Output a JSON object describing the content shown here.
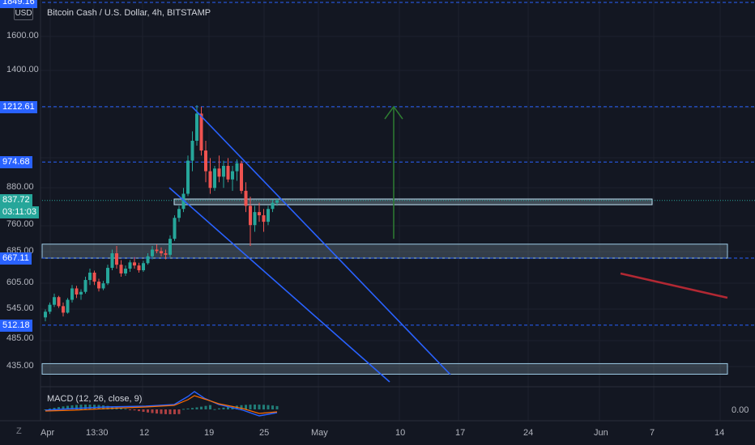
{
  "chart_title": "Bitcoin Cash / U.S. Dollar, 4h, BITSTAMP",
  "currency_button": "USD",
  "timezone_button": "Z",
  "price_axis": {
    "labels": [
      "1600.00",
      "1400.00",
      "880.00",
      "760.00",
      "685.00",
      "605.00",
      "545.00",
      "485.00",
      "435.00"
    ],
    "top_tag": "1849.16",
    "tags": [
      "1212.61",
      "974.68",
      "667.11",
      "512.18"
    ],
    "current_price": "837.72",
    "countdown": "03:11:03"
  },
  "time_axis": [
    "Apr",
    "13:30",
    "12",
    "19",
    "25",
    "May",
    "10",
    "17",
    "24",
    "Jun",
    "7",
    "14"
  ],
  "macd": {
    "title": "MACD (12, 26, close, 9)",
    "zero_label": "0.00"
  },
  "colors": {
    "background": "#131722",
    "up": "#26a69a",
    "down": "#ef5350",
    "channel": "#2962ff",
    "target_arrow": "#2e7d32",
    "trend_red": "#b22833",
    "tag_bg": "#2962ff"
  },
  "chart_data": {
    "type": "candlestick",
    "title": "Bitcoin Cash / U.S. Dollar, 4h, BITSTAMP",
    "y_scale": "log",
    "horizontal_levels": [
      1849.16,
      1212.61,
      974.68,
      837.72,
      667.11,
      512.18
    ],
    "zones": [
      {
        "from": 667.11,
        "to": 705
      },
      {
        "from": 422,
        "to": 440
      }
    ],
    "current_price": 837.72,
    "ohlc": [
      [
        528,
        545,
        520,
        540
      ],
      [
        540,
        560,
        535,
        555
      ],
      [
        555,
        580,
        550,
        572
      ],
      [
        572,
        575,
        548,
        552
      ],
      [
        552,
        560,
        530,
        538
      ],
      [
        538,
        570,
        536,
        566
      ],
      [
        566,
        600,
        560,
        592
      ],
      [
        592,
        598,
        570,
        578
      ],
      [
        578,
        590,
        566,
        584
      ],
      [
        584,
        620,
        580,
        612
      ],
      [
        612,
        640,
        600,
        630
      ],
      [
        630,
        635,
        600,
        608
      ],
      [
        608,
        615,
        585,
        592
      ],
      [
        592,
        610,
        588,
        604
      ],
      [
        604,
        650,
        600,
        642
      ],
      [
        642,
        690,
        636,
        680
      ],
      [
        680,
        700,
        640,
        650
      ],
      [
        650,
        662,
        620,
        628
      ],
      [
        628,
        648,
        622,
        640
      ],
      [
        640,
        662,
        632,
        656
      ],
      [
        656,
        670,
        640,
        648
      ],
      [
        648,
        655,
        630,
        636
      ],
      [
        636,
        660,
        632,
        654
      ],
      [
        654,
        680,
        650,
        672
      ],
      [
        672,
        700,
        664,
        690
      ],
      [
        690,
        704,
        680,
        686
      ],
      [
        686,
        696,
        672,
        680
      ],
      [
        680,
        690,
        664,
        676
      ],
      [
        676,
        730,
        670,
        720
      ],
      [
        720,
        790,
        714,
        782
      ],
      [
        782,
        820,
        770,
        810
      ],
      [
        810,
        880,
        800,
        860
      ],
      [
        860,
        1000,
        852,
        980
      ],
      [
        980,
        1100,
        940,
        1060
      ],
      [
        1060,
        1220,
        1040,
        1180
      ],
      [
        1180,
        1212,
        1000,
        1020
      ],
      [
        1020,
        1060,
        900,
        940
      ],
      [
        940,
        990,
        860,
        880
      ],
      [
        880,
        960,
        870,
        950
      ],
      [
        950,
        1000,
        900,
        920
      ],
      [
        920,
        980,
        880,
        960
      ],
      [
        960,
        990,
        900,
        910
      ],
      [
        910,
        960,
        870,
        940
      ],
      [
        940,
        985,
        905,
        970
      ],
      [
        970,
        980,
        860,
        870
      ],
      [
        870,
        900,
        800,
        820
      ],
      [
        820,
        850,
        700,
        760
      ],
      [
        760,
        820,
        740,
        800
      ],
      [
        800,
        830,
        770,
        790
      ],
      [
        790,
        810,
        740,
        770
      ],
      [
        770,
        820,
        760,
        810
      ],
      [
        810,
        840,
        800,
        830
      ],
      [
        830,
        845,
        820,
        837.72
      ]
    ],
    "channel_lines": [
      {
        "name": "upper",
        "from": [
          "Apr 17",
          1212.61
        ],
        "to": [
          "May 16",
          422
        ]
      },
      {
        "name": "lower",
        "from": [
          "Apr 15",
          880
        ],
        "to": [
          "May 10",
          408
        ]
      }
    ],
    "target_arrow": {
      "from": 720,
      "to": 1212.61
    },
    "red_trend": {
      "from": 625,
      "to": 568
    }
  }
}
